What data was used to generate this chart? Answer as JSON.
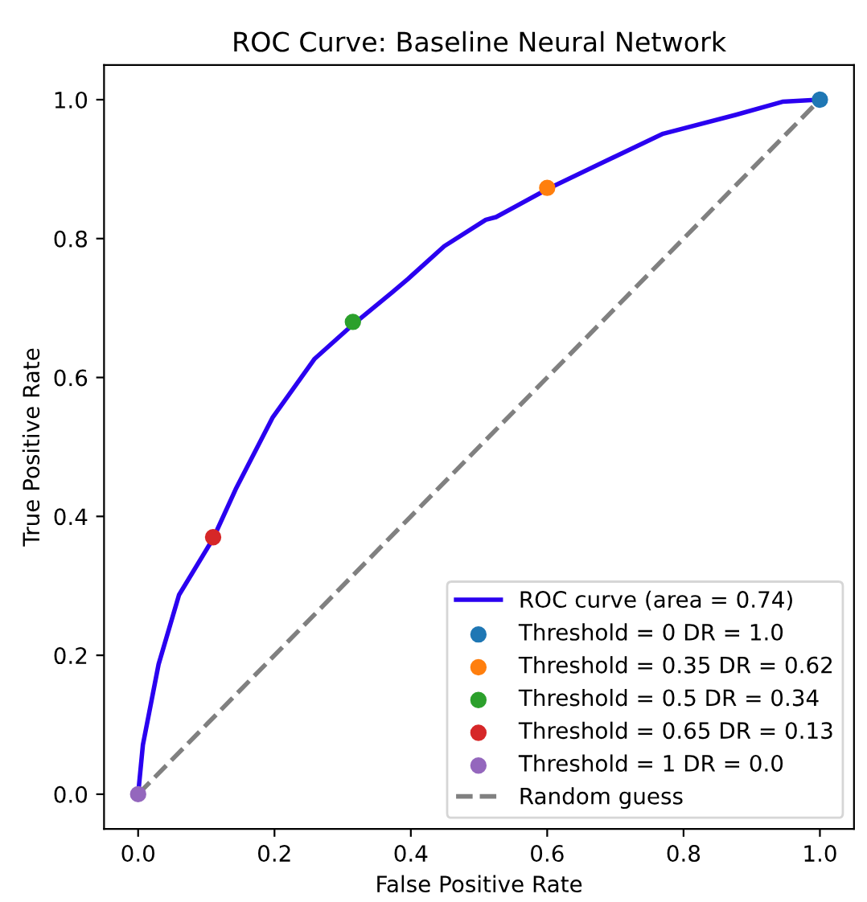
{
  "chart_data": {
    "type": "line",
    "title": "ROC Curve: Baseline Neural Network",
    "xlabel": "False Positive Rate",
    "ylabel": "True Positive Rate",
    "xlim": [
      -0.05,
      1.05
    ],
    "ylim": [
      -0.05,
      1.05
    ],
    "xticks": [
      {
        "value": 0,
        "label": "0.0"
      },
      0.2,
      0.4,
      0.6,
      0.8,
      {
        "value": 1,
        "label": "1.0"
      }
    ],
    "yticks": [
      {
        "value": 0,
        "label": "0.0"
      },
      0.2,
      0.4,
      0.6,
      0.8,
      {
        "value": 1,
        "label": "1.0"
      }
    ],
    "grid": false,
    "legend": "bottom right",
    "series": [
      {
        "name": "ROC curve (area = 0.74)",
        "color": "#2a00f0",
        "line_style": "solid",
        "marker": "none",
        "x": [
          0,
          0.007,
          0.03,
          0.06,
          0.11,
          0.144,
          0.197,
          0.259,
          0.316,
          0.373,
          0.396,
          0.449,
          0.51,
          0.525,
          0.602,
          0.678,
          0.77,
          0.876,
          0.945,
          1.0
        ],
        "values": [
          0,
          0.071,
          0.187,
          0.287,
          0.368,
          0.441,
          0.542,
          0.627,
          0.677,
          0.723,
          0.742,
          0.789,
          0.827,
          0.831,
          0.872,
          0.908,
          0.951,
          0.978,
          0.997,
          1.0
        ]
      },
      {
        "name": "Threshold = 0 DR = 1.0",
        "type": "scatter",
        "color": "#1f77b4",
        "marker": "circle",
        "x": [
          1.0
        ],
        "values": [
          1.0
        ]
      },
      {
        "name": "Threshold = 0.35 DR = 0.62",
        "type": "scatter",
        "color": "#ff7f0e",
        "marker": "circle",
        "x": [
          0.6
        ],
        "values": [
          0.873
        ]
      },
      {
        "name": "Threshold = 0.5 DR = 0.34",
        "type": "scatter",
        "color": "#2ca02c",
        "marker": "circle",
        "x": [
          0.315
        ],
        "values": [
          0.68
        ]
      },
      {
        "name": "Threshold = 0.65 DR = 0.13",
        "type": "scatter",
        "color": "#d62728",
        "marker": "circle",
        "x": [
          0.11
        ],
        "values": [
          0.37
        ]
      },
      {
        "name": "Threshold = 1 DR = 0.0",
        "type": "scatter",
        "color": "#9467bd",
        "marker": "circle",
        "x": [
          0.0
        ],
        "values": [
          0.0
        ]
      },
      {
        "name": "Random guess",
        "color": "#808080",
        "line_style": "dashed",
        "marker": "none",
        "x": [
          0,
          1
        ],
        "values": [
          0,
          1
        ]
      }
    ]
  }
}
